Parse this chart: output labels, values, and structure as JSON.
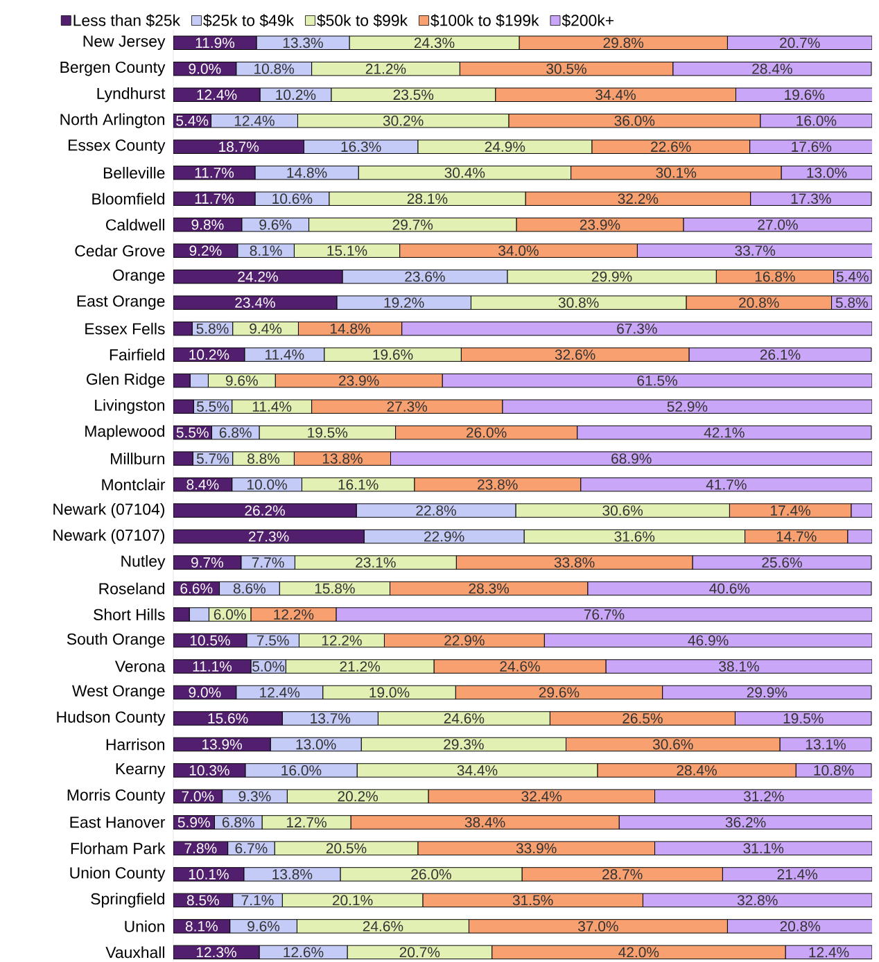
{
  "chart_data": {
    "type": "bar",
    "orientation": "horizontal",
    "stacked": true,
    "legend": "top",
    "tick_labels": "y",
    "xlim": [
      0,
      100
    ],
    "categories": [
      "New Jersey",
      "Bergen County",
      "Lyndhurst",
      "North Arlington",
      "Essex County",
      "Belleville",
      "Bloomfield",
      "Caldwell",
      "Cedar Grove",
      "Orange",
      "East Orange",
      "Essex Fells",
      "Fairfield",
      "Glen Ridge",
      "Livingston",
      "Maplewood",
      "Millburn",
      "Montclair",
      "Newark (07104)",
      "Newark (07107)",
      "Nutley",
      "Roseland",
      "Short Hills",
      "South Orange",
      "Verona",
      "West Orange",
      "Hudson County",
      "Harrison",
      "Kearny",
      "Morris County",
      "East Hanover",
      "Florham Park",
      "Union County",
      "Springfield",
      "Union",
      "Vauxhall"
    ],
    "series": [
      {
        "name": "Less than $25k",
        "color": "#521f6e",
        "values": [
          11.9,
          9.0,
          12.4,
          5.4,
          18.7,
          11.7,
          11.7,
          9.8,
          9.2,
          24.2,
          23.4,
          2.7,
          10.2,
          2.4,
          2.9,
          5.5,
          2.8,
          8.4,
          26.2,
          27.3,
          9.7,
          6.6,
          2.3,
          10.5,
          11.1,
          9.0,
          15.6,
          13.9,
          10.3,
          7.0,
          5.9,
          7.8,
          10.1,
          8.5,
          8.1,
          12.3
        ],
        "value_labels": [
          "11.9%",
          "9.0%",
          "12.4%",
          "5.4%",
          "18.7%",
          "11.7%",
          "11.7%",
          "9.8%",
          "9.2%",
          "24.2%",
          "23.4%",
          null,
          "10.2%",
          null,
          null,
          "5.5%",
          null,
          "8.4%",
          "26.2%",
          "27.3%",
          "9.7%",
          "6.6%",
          null,
          "10.5%",
          "11.1%",
          "9.0%",
          "15.6%",
          "13.9%",
          "10.3%",
          "7.0%",
          "5.9%",
          "7.8%",
          "10.1%",
          "8.5%",
          "8.1%",
          "12.3%"
        ]
      },
      {
        "name": "$25k to $49k",
        "color": "#c5cbf7",
        "values": [
          13.3,
          10.8,
          10.2,
          12.4,
          16.3,
          14.8,
          10.6,
          9.6,
          8.1,
          23.6,
          19.2,
          5.8,
          11.4,
          2.6,
          5.5,
          6.8,
          5.7,
          10.0,
          22.8,
          22.9,
          7.7,
          8.6,
          2.8,
          7.5,
          5.0,
          12.4,
          13.7,
          13.0,
          16.0,
          9.3,
          6.8,
          6.7,
          13.8,
          7.1,
          9.6,
          12.6
        ],
        "value_labels": [
          "13.3%",
          "10.8%",
          "10.2%",
          "12.4%",
          "16.3%",
          "14.8%",
          "10.6%",
          "9.6%",
          "8.1%",
          "23.6%",
          "19.2%",
          "5.8%",
          "11.4%",
          null,
          "5.5%",
          "6.8%",
          "5.7%",
          "10.0%",
          "22.8%",
          "22.9%",
          "7.7%",
          "8.6%",
          null,
          "7.5%",
          "5.0%",
          "12.4%",
          "13.7%",
          "13.0%",
          "16.0%",
          "9.3%",
          "6.8%",
          "6.7%",
          "13.8%",
          "7.1%",
          "9.6%",
          "12.6%"
        ]
      },
      {
        "name": "$50k to $99k",
        "color": "#e2f0b4",
        "values": [
          24.3,
          21.2,
          23.5,
          30.2,
          24.9,
          30.4,
          28.1,
          29.7,
          15.1,
          29.9,
          30.8,
          9.4,
          19.6,
          9.6,
          11.4,
          19.5,
          8.8,
          16.1,
          30.6,
          31.6,
          23.1,
          15.8,
          6.0,
          12.2,
          21.2,
          19.0,
          24.6,
          29.3,
          34.4,
          20.2,
          12.7,
          20.5,
          26.0,
          20.1,
          24.6,
          20.7
        ],
        "value_labels": [
          "24.3%",
          "21.2%",
          "23.5%",
          "30.2%",
          "24.9%",
          "30.4%",
          "28.1%",
          "29.7%",
          "15.1%",
          "29.9%",
          "30.8%",
          "9.4%",
          "19.6%",
          "9.6%",
          "11.4%",
          "19.5%",
          "8.8%",
          "16.1%",
          "30.6%",
          "31.6%",
          "23.1%",
          "15.8%",
          "6.0%",
          "12.2%",
          "21.2%",
          "19.0%",
          "24.6%",
          "29.3%",
          "34.4%",
          "20.2%",
          "12.7%",
          "20.5%",
          "26.0%",
          "20.1%",
          "24.6%",
          "20.7%"
        ]
      },
      {
        "name": "$100k to $199k",
        "color": "#f9a070",
        "values": [
          29.8,
          30.5,
          34.4,
          36.0,
          22.6,
          30.1,
          32.2,
          23.9,
          34.0,
          16.8,
          20.8,
          14.8,
          32.6,
          23.9,
          27.3,
          26.0,
          13.8,
          23.8,
          17.4,
          14.7,
          33.8,
          28.3,
          12.2,
          22.9,
          24.6,
          29.6,
          26.5,
          30.6,
          28.4,
          32.4,
          38.4,
          33.9,
          28.7,
          31.5,
          37.0,
          42.0
        ],
        "value_labels": [
          "29.8%",
          "30.5%",
          "34.4%",
          "36.0%",
          "22.6%",
          "30.1%",
          "32.2%",
          "23.9%",
          "34.0%",
          "16.8%",
          "20.8%",
          "14.8%",
          "32.6%",
          "23.9%",
          "27.3%",
          "26.0%",
          "13.8%",
          "23.8%",
          "17.4%",
          "14.7%",
          "33.8%",
          "28.3%",
          "12.2%",
          "22.9%",
          "24.6%",
          "29.6%",
          "26.5%",
          "30.6%",
          "28.4%",
          "32.4%",
          "38.4%",
          "33.9%",
          "28.7%",
          "31.5%",
          "37.0%",
          "42.0%"
        ]
      },
      {
        "name": "$200k+",
        "color": "#caa6f8",
        "values": [
          20.7,
          28.4,
          19.6,
          16.0,
          17.6,
          13.0,
          17.3,
          27.0,
          33.7,
          5.4,
          5.8,
          67.3,
          26.1,
          61.5,
          52.9,
          42.1,
          68.9,
          41.7,
          3.0,
          3.5,
          25.6,
          40.6,
          76.7,
          46.9,
          38.1,
          29.9,
          19.5,
          13.1,
          10.8,
          31.2,
          36.2,
          31.1,
          21.4,
          32.8,
          20.8,
          12.4
        ],
        "value_labels": [
          "20.7%",
          "28.4%",
          "19.6%",
          "16.0%",
          "17.6%",
          "13.0%",
          "17.3%",
          "27.0%",
          "33.7%",
          "5.4%",
          "5.8%",
          "67.3%",
          "26.1%",
          "61.5%",
          "52.9%",
          "42.1%",
          "68.9%",
          "41.7%",
          null,
          null,
          "25.6%",
          "40.6%",
          "76.7%",
          "46.9%",
          "38.1%",
          "29.9%",
          "19.5%",
          "13.1%",
          "10.8%",
          "31.2%",
          "36.2%",
          "31.1%",
          "21.4%",
          "32.8%",
          "20.8%",
          "12.4%"
        ]
      }
    ]
  }
}
